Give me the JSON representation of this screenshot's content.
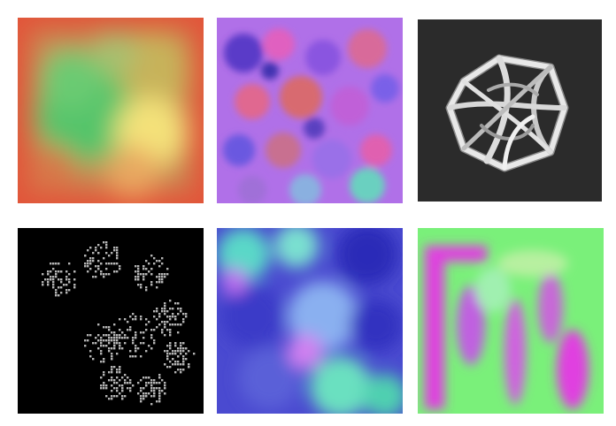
{
  "grid": {
    "tiles": [
      {
        "name": "blurred-green-yellow-texture",
        "colors": [
          "#e2553a",
          "#55c46a",
          "#f4e27a",
          "#86b85a"
        ]
      },
      {
        "name": "purple-magenta-noise-texture",
        "colors": [
          "#8a55e0",
          "#e060c0",
          "#d86a70",
          "#6ad0c0"
        ]
      },
      {
        "name": "white-knot-render",
        "colors": [
          "#2b2b2b",
          "#e8e8e8"
        ]
      },
      {
        "name": "gray-dot-pattern",
        "colors": [
          "#000000",
          "#b4b4b4"
        ]
      },
      {
        "name": "blue-teal-iridescent-texture",
        "colors": [
          "#3a3ac8",
          "#5ad8c8",
          "#8ab0f0",
          "#d080f0"
        ]
      },
      {
        "name": "green-magenta-stripe-texture",
        "colors": [
          "#7af07a",
          "#e040e0",
          "#b8f0a0"
        ]
      }
    ]
  }
}
